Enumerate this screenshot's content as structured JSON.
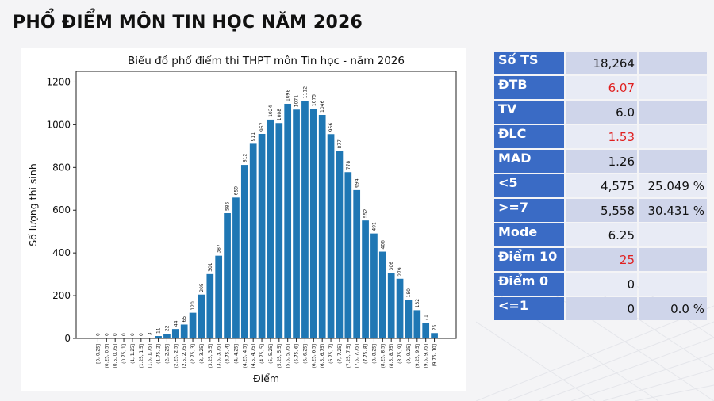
{
  "page": {
    "title": "PHỔ ĐIỂM MÔN TIN HỌC NĂM 2026"
  },
  "colors": {
    "bar": "#1f77b4",
    "label_bg": "#3a6bc5",
    "highlight": "#e02020"
  },
  "stats": [
    {
      "label": "Số TS",
      "value": "18,264",
      "pct": "",
      "value_red": false
    },
    {
      "label": "ĐTB",
      "value": "6.07",
      "pct": "",
      "value_red": true
    },
    {
      "label": "TV",
      "value": "6.0",
      "pct": "",
      "value_red": false
    },
    {
      "label": "ĐLC",
      "value": "1.53",
      "pct": "",
      "value_red": true
    },
    {
      "label": "MAD",
      "value": "1.26",
      "pct": "",
      "value_red": false
    },
    {
      "label": "<5",
      "value": "4,575",
      "pct": "25.049 %",
      "value_red": false
    },
    {
      "label": ">=7",
      "value": "5,558",
      "pct": "30.431 %",
      "value_red": false
    },
    {
      "label": "Mode",
      "value": "6.25",
      "pct": "",
      "value_red": false
    },
    {
      "label": "Điểm 10",
      "value": "25",
      "pct": "",
      "value_red": true
    },
    {
      "label": "Điểm 0",
      "value": "0",
      "pct": "",
      "value_red": false
    },
    {
      "label": "<=1",
      "value": "0",
      "pct": "0.0 %",
      "value_red": false
    }
  ],
  "chart_data": {
    "type": "bar",
    "title": "Biểu đồ phổ điểm thi THPT môn Tin học - năm 2026",
    "xlabel": "Điểm",
    "ylabel": "Số lượng thí sinh",
    "ylim": [
      0,
      1250
    ],
    "yticks": [
      0,
      200,
      400,
      600,
      800,
      1000,
      1200
    ],
    "grid": false,
    "categories": [
      "[0, 0.25]",
      "(0.25, 0.5]",
      "(0.5, 0.75]",
      "(0.75, 1]",
      "(1, 1.25]",
      "(1.25, 1.5]",
      "(1.5, 1.75]",
      "(1.75, 2]",
      "(2, 2.25]",
      "(2.25, 2.5]",
      "(2.5, 2.75]",
      "(2.75, 3]",
      "(3, 3.25]",
      "(3.25, 3.5]",
      "(3.5, 3.75]",
      "(3.75, 4]",
      "(4, 4.25]",
      "(4.25, 4.5]",
      "(4.5, 4.75]",
      "(4.75, 5]",
      "(5, 5.25]",
      "(5.25, 5.5]",
      "(5.5, 5.75]",
      "(5.75, 6]",
      "(6, 6.25]",
      "(6.25, 6.5]",
      "(6.5, 6.75]",
      "(6.75, 7]",
      "(7, 7.25]",
      "(7.25, 7.5]",
      "(7.5, 7.75]",
      "(7.75, 8]",
      "(8, 8.25]",
      "(8.25, 8.5]",
      "(8.5, 8.75]",
      "(8.75, 9]",
      "(9, 9.25]",
      "(9.25, 9.5]",
      "(9.5, 9.75]",
      "(9.75, 10]"
    ],
    "values": [
      0,
      0,
      0,
      0,
      0,
      0,
      3,
      11,
      22,
      44,
      65,
      120,
      205,
      301,
      387,
      586,
      659,
      812,
      911,
      957,
      1024,
      1008,
      1098,
      1071,
      1112,
      1075,
      1046,
      956,
      877,
      778,
      694,
      552,
      491,
      406,
      306,
      279,
      180,
      132,
      71,
      25
    ]
  }
}
